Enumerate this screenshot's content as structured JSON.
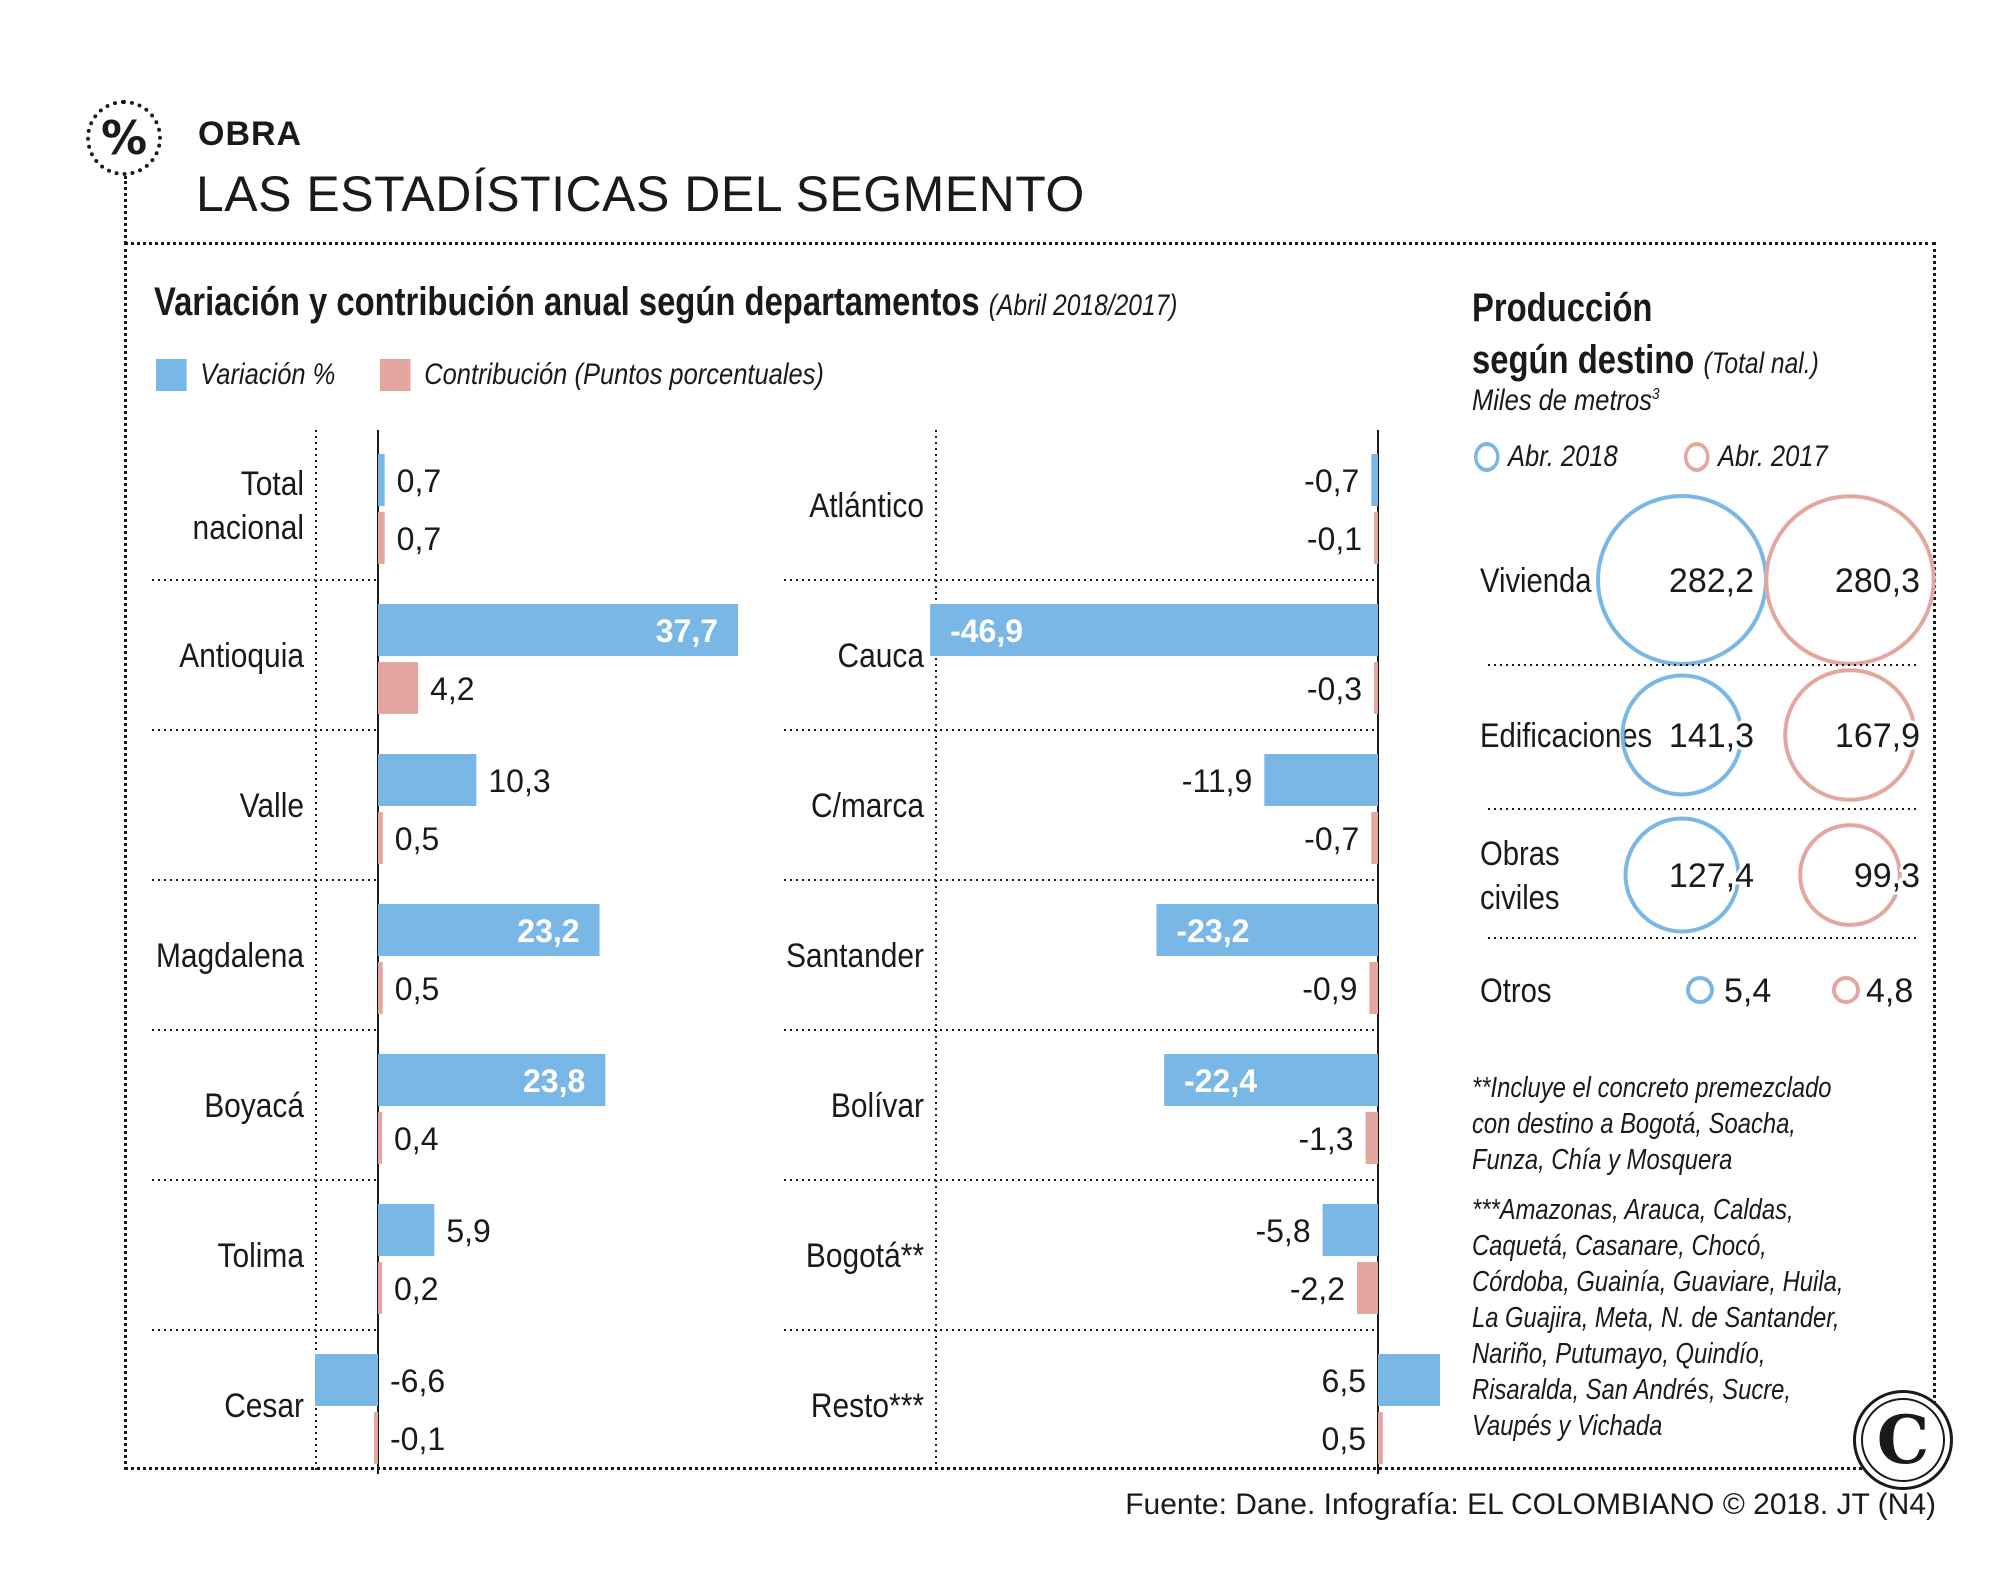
{
  "header": {
    "badge": "%",
    "kicker": "OBRA",
    "headline": "LAS ESTADÍSTICAS DEL SEGMENTO"
  },
  "left_chart": {
    "title": "Variación y contribución anual según departamentos",
    "subtitle": "(Abril 2018/2017)",
    "legend": {
      "variation": "Variación %",
      "contribution": "Contribución (Puntos porcentuales)"
    }
  },
  "right_chart": {
    "title_line1": "Producción",
    "title_line2": "según destino",
    "subtitle": "(Total nal.)",
    "units": "Miles de metros",
    "units_sup": "3",
    "legend": {
      "y2018": "Abr. 2018",
      "y2017": "Abr. 2017"
    }
  },
  "colors": {
    "variation": "#79b7e6",
    "contribution": "#e4a7a0",
    "text": "#1a1a1a"
  },
  "chart_data": [
    {
      "type": "bar",
      "orientation": "horizontal",
      "title": "Variación y contribución anual según departamentos (Abril 2018/2017)",
      "panel": "left",
      "series": [
        {
          "name": "Variación %",
          "values": [
            0.7,
            37.7,
            10.3,
            23.2,
            23.8,
            5.9,
            -6.6
          ],
          "labels": [
            "0,7",
            "37,7",
            "10,3",
            "23,2",
            "23,8",
            "5,9",
            "-6,6"
          ]
        },
        {
          "name": "Contribución (Puntos porcentuales)",
          "values": [
            0.7,
            4.2,
            0.5,
            0.5,
            0.4,
            0.2,
            -0.1
          ],
          "labels": [
            "0,7",
            "4,2",
            "0,5",
            "0,5",
            "0,4",
            "0,2",
            "-0,1"
          ]
        }
      ],
      "categories": [
        "Total nacional",
        "Antioquia",
        "Valle",
        "Magdalena",
        "Boyacá",
        "Tolima",
        "Cesar"
      ]
    },
    {
      "type": "bar",
      "orientation": "horizontal",
      "panel": "middle",
      "series": [
        {
          "name": "Variación %",
          "values": [
            -0.7,
            -46.9,
            -11.9,
            -23.2,
            -22.4,
            -5.8,
            6.5
          ],
          "labels": [
            "-0,7",
            "-46,9",
            "-11,9",
            "-23,2",
            "-22,4",
            "-5,8",
            "6,5"
          ]
        },
        {
          "name": "Contribución (Puntos porcentuales)",
          "values": [
            -0.1,
            -0.3,
            -0.7,
            -0.9,
            -1.3,
            -2.2,
            0.5
          ],
          "labels": [
            "-0,1",
            "-0,3",
            "-0,7",
            "-0,9",
            "-1,3",
            "-2,2",
            "0,5"
          ]
        }
      ],
      "categories": [
        "Atlántico",
        "Cauca",
        "C/marca",
        "Santander",
        "Bolívar",
        "Bogotá**",
        "Resto***"
      ]
    },
    {
      "type": "bubble",
      "title": "Producción según destino (Total nal.)",
      "ylabel": "Miles de metros3",
      "categories": [
        "Vivienda",
        "Edificaciones",
        "Obras civiles",
        "Otros"
      ],
      "series": [
        {
          "name": "Abr. 2018",
          "values": [
            282.2,
            141.3,
            127.4,
            5.4
          ],
          "labels": [
            "282,2",
            "141,3",
            "127,4",
            "5,4"
          ]
        },
        {
          "name": "Abr. 2017",
          "values": [
            280.3,
            167.9,
            99.3,
            4.8
          ],
          "labels": [
            "280,3",
            "167,9",
            "99,3",
            "4,8"
          ]
        }
      ]
    }
  ],
  "notes": {
    "note1": [
      "**Incluye el concreto premezclado",
      "con destino a Bogotá, Soacha,",
      "Funza, Chía y Mosquera"
    ],
    "note2": [
      "***Amazonas, Arauca, Caldas,",
      "Caquetá, Casanare, Chocó,",
      "Córdoba, Guainía, Guaviare, Huila,",
      "La Guajira, Meta, N. de Santander,",
      "Nariño, Putumayo, Quindío,",
      "Risaralda, San Andrés, Sucre,",
      "Vaupés y Vichada"
    ]
  },
  "source": "Fuente: Dane. Infografía: EL COLOMBIANO © 2018. JT (N4)",
  "logo": "C"
}
